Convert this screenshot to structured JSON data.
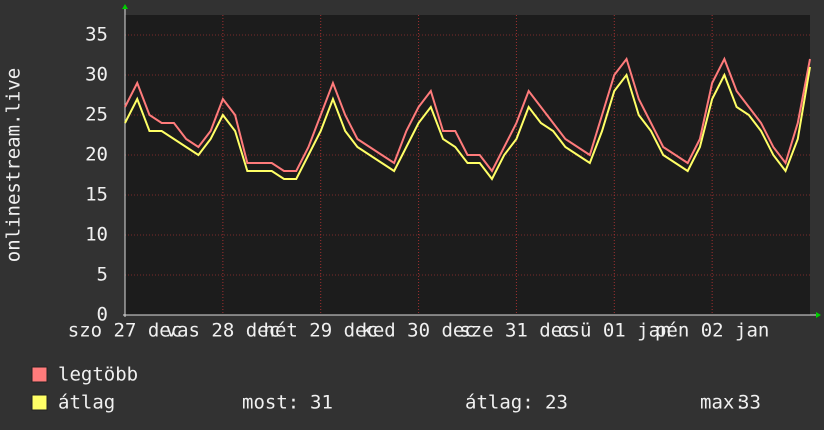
{
  "chart_data": {
    "type": "line",
    "ylabel": "onlinestream.live",
    "x": [
      0,
      0.125,
      0.25,
      0.375,
      0.5,
      0.625,
      0.75,
      0.875,
      1,
      1.125,
      1.25,
      1.375,
      1.5,
      1.625,
      1.75,
      1.875,
      2,
      2.125,
      2.25,
      2.375,
      2.5,
      2.625,
      2.75,
      2.875,
      3,
      3.125,
      3.25,
      3.375,
      3.5,
      3.625,
      3.75,
      3.875,
      4,
      4.125,
      4.25,
      4.375,
      4.5,
      4.625,
      4.75,
      4.875,
      5,
      5.125,
      5.25,
      5.375,
      5.5,
      5.625,
      5.75,
      5.875,
      6,
      6.125,
      6.25,
      6.375,
      6.5,
      6.625,
      6.75,
      6.875,
      7
    ],
    "series": [
      {
        "name": "legtöbb",
        "color": "#ff7b7b",
        "values": [
          26,
          29,
          25,
          24,
          24,
          22,
          21,
          23,
          27,
          25,
          19,
          19,
          19,
          18,
          18,
          21,
          25,
          29,
          25,
          22,
          21,
          20,
          19,
          23,
          26,
          28,
          23,
          23,
          20,
          20,
          18,
          21,
          24,
          28,
          26,
          24,
          22,
          21,
          20,
          25,
          30,
          32,
          27,
          24,
          21,
          20,
          19,
          22,
          29,
          32,
          28,
          26,
          24,
          21,
          19,
          24,
          32
        ]
      },
      {
        "name": "átlag",
        "color": "#ffff66",
        "values": [
          24,
          27,
          23,
          23,
          22,
          21,
          20,
          22,
          25,
          23,
          18,
          18,
          18,
          17,
          17,
          20,
          23,
          27,
          23,
          21,
          20,
          19,
          18,
          21,
          24,
          26,
          22,
          21,
          19,
          19,
          17,
          20,
          22,
          26,
          24,
          23,
          21,
          20,
          19,
          23,
          28,
          30,
          25,
          23,
          20,
          19,
          18,
          21,
          27,
          30,
          26,
          25,
          23,
          20,
          18,
          22,
          31
        ]
      }
    ],
    "xlim": [
      0,
      7
    ],
    "xticks": [
      {
        "value": 0,
        "label": "szo 27 dec"
      },
      {
        "value": 1,
        "label": "vas 28 dec"
      },
      {
        "value": 2,
        "label": "hét 29 dec"
      },
      {
        "value": 3,
        "label": "ked 30 dec"
      },
      {
        "value": 4,
        "label": "sze 31 dec"
      },
      {
        "value": 5,
        "label": "csü 01 jan"
      },
      {
        "value": 6,
        "label": "pén 02 jan"
      }
    ],
    "ylim": [
      0,
      37.5
    ],
    "yticks": [
      0,
      5,
      10,
      15,
      20,
      25,
      30,
      35
    ],
    "grid": true,
    "stats": [
      {
        "label": "most:",
        "value": 31
      },
      {
        "label": "átlag:",
        "value": 23
      },
      {
        "label": "max:",
        "value": 33
      }
    ]
  }
}
